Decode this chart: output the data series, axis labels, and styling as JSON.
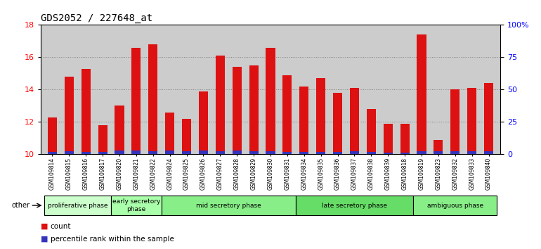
{
  "title": "GDS2052 / 227648_at",
  "samples": [
    "GSM109814",
    "GSM109815",
    "GSM109816",
    "GSM109817",
    "GSM109820",
    "GSM109821",
    "GSM109822",
    "GSM109824",
    "GSM109825",
    "GSM109826",
    "GSM109827",
    "GSM109828",
    "GSM109829",
    "GSM109830",
    "GSM109831",
    "GSM109834",
    "GSM109835",
    "GSM109836",
    "GSM109837",
    "GSM109838",
    "GSM109839",
    "GSM109818",
    "GSM109819",
    "GSM109823",
    "GSM109832",
    "GSM109833",
    "GSM109840"
  ],
  "count_values": [
    12.3,
    14.8,
    15.3,
    11.8,
    13.0,
    16.6,
    16.8,
    12.6,
    12.2,
    13.9,
    16.1,
    15.4,
    15.5,
    16.6,
    14.9,
    14.2,
    14.7,
    13.8,
    14.1,
    12.8,
    11.9,
    11.9,
    17.4,
    10.9,
    14.0,
    14.1,
    14.4
  ],
  "percentile_values": [
    0.15,
    0.18,
    0.16,
    0.14,
    0.22,
    0.22,
    0.2,
    0.22,
    0.2,
    0.22,
    0.2,
    0.22,
    0.2,
    0.2,
    0.16,
    0.16,
    0.16,
    0.16,
    0.18,
    0.16,
    0.12,
    0.12,
    0.2,
    0.18,
    0.18,
    0.2,
    0.18
  ],
  "ymin": 10,
  "ymax": 18,
  "yticks": [
    10,
    12,
    14,
    16,
    18
  ],
  "right_yticks": [
    0,
    25,
    50,
    75,
    100
  ],
  "right_yticklabels": [
    "0",
    "25",
    "50",
    "75",
    "100%"
  ],
  "bar_color_red": "#dd1111",
  "bar_color_blue": "#3333bb",
  "phases": [
    {
      "label": "proliferative phase",
      "start": 0,
      "end": 4,
      "color": "#ccffcc"
    },
    {
      "label": "early secretory\nphase",
      "start": 4,
      "end": 7,
      "color": "#aaffaa"
    },
    {
      "label": "mid secretory phase",
      "start": 7,
      "end": 15,
      "color": "#88ee88"
    },
    {
      "label": "late secretory phase",
      "start": 15,
      "end": 22,
      "color": "#66dd66"
    },
    {
      "label": "ambiguous phase",
      "start": 22,
      "end": 27,
      "color": "#88ee88"
    }
  ],
  "xlabel_other": "other",
  "bg_color": "#cccccc",
  "legend_count_label": "count",
  "legend_percentile_label": "percentile rank within the sample"
}
